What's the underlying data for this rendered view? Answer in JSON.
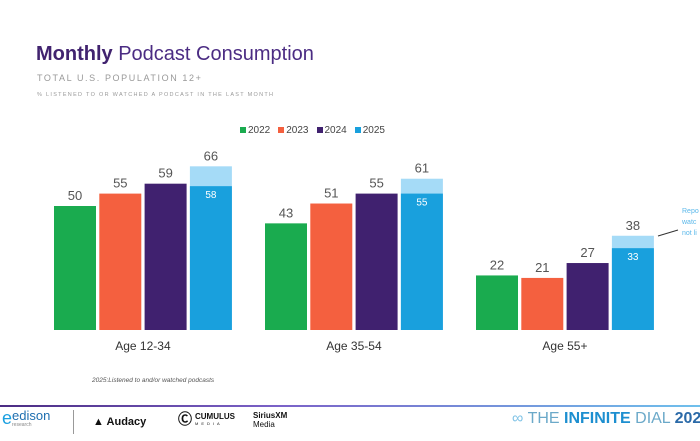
{
  "header": {
    "title_bold": "Monthly",
    "title_rest": " Podcast Consumption",
    "subtitle": "TOTAL U.S. POPULATION 12+",
    "subtitle2": "% LISTENED TO OR WATCHED A PODCAST IN THE LAST MONTH"
  },
  "chart_data": {
    "type": "bar",
    "categories": [
      "Age 12-34",
      "Age 35-54",
      "Age 55+"
    ],
    "series": [
      {
        "name": "2022",
        "color": "#1aab4f",
        "values": [
          50,
          43,
          22
        ]
      },
      {
        "name": "2023",
        "color": "#f4603f",
        "values": [
          55,
          51,
          21
        ]
      },
      {
        "name": "2024",
        "color": "#40216f",
        "values": [
          59,
          55,
          27
        ]
      },
      {
        "name": "2025",
        "color": "#19a0dd",
        "values": [
          66,
          61,
          38
        ],
        "inner_values": [
          58,
          55,
          33
        ],
        "inner_color": "#19a0dd",
        "outer_color": "#a5dbf7"
      }
    ],
    "ylim": [
      0,
      70
    ],
    "legend_position": "top-center",
    "grid": false
  },
  "annotation": {
    "lines": [
      "Repo",
      "watc",
      "not li"
    ]
  },
  "footnote": "2025:Listened to and/or watched podcasts",
  "footer": {
    "logos": [
      "edison",
      "research",
      "Audacy",
      "CUMULUS",
      "MEDIA",
      "SiriusXM",
      "Media"
    ],
    "brand_prefix": "THE ",
    "brand_bold": "INFINITE",
    "brand_rest": " DIAL",
    "brand_year": "202"
  }
}
